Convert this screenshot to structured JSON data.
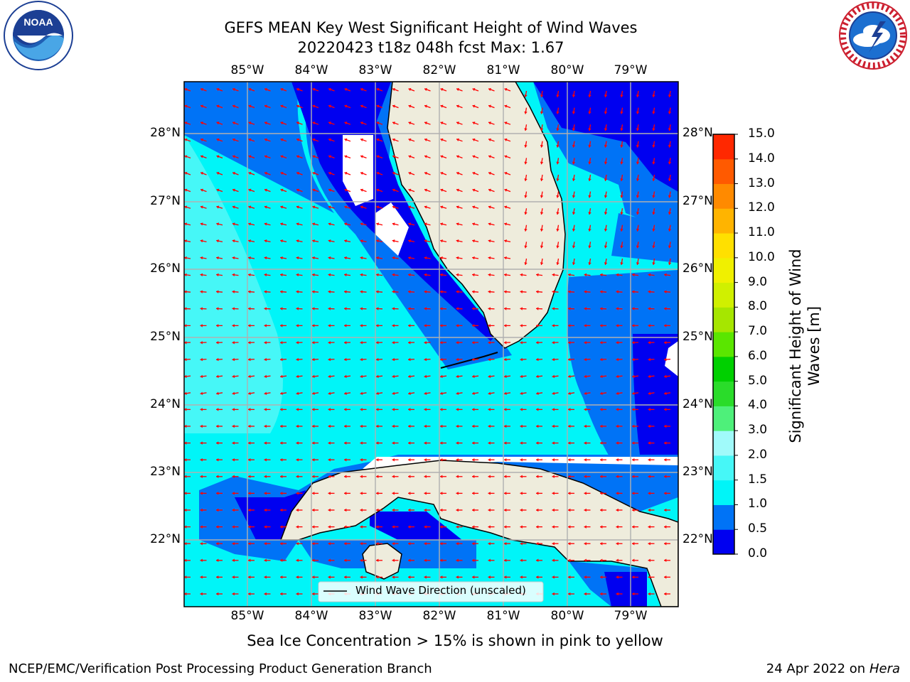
{
  "title": {
    "line1": "GEFS MEAN Key West Significant Height of Wind Waves",
    "line2": "20220423 t18z 048h fcst   Max: 1.67"
  },
  "logos": {
    "left": "noaa-logo",
    "right": "nws-logo"
  },
  "map": {
    "lon_ticks": [
      "85°W",
      "84°W",
      "83°W",
      "82°W",
      "81°W",
      "80°W",
      "79°W"
    ],
    "lat_ticks": [
      "28°N",
      "27°N",
      "26°N",
      "25°N",
      "24°N",
      "23°N",
      "22°N"
    ],
    "colors": {
      "land": "#eeecdc",
      "water": "#00f5f8",
      "band_0_0_5": "#0000f0",
      "band_0_5_1": "#0073f6",
      "band_1_1_5": "#00f5f8",
      "band_1_5_2": "#46f7f7",
      "missing": "#ffffff",
      "arrow": "#ff0000",
      "grid": "#b0b0b0"
    },
    "legend_label": "Wind Wave Direction (unscaled)"
  },
  "colorbar": {
    "label_line1": "Significant Height of Wind",
    "label_line2": "Waves [m]",
    "ticks": [
      "0.0",
      "0.5",
      "1.0",
      "1.5",
      "2.0",
      "3.0",
      "4.0",
      "5.0",
      "6.0",
      "7.0",
      "8.0",
      "9.0",
      "10.0",
      "11.0",
      "12.0",
      "13.0",
      "14.0",
      "15.0"
    ],
    "colors": [
      "#0000f0",
      "#0073f6",
      "#00f5f8",
      "#46f7f7",
      "#a0fafa",
      "#4ef07a",
      "#2adc2a",
      "#00d000",
      "#5ae600",
      "#a6e600",
      "#d0f000",
      "#f0f000",
      "#ffe000",
      "#ffb400",
      "#ff8a00",
      "#ff5a00",
      "#ff2800",
      "#ff0000"
    ]
  },
  "caption": "Sea Ice Concentration > 15% is shown in pink to yellow",
  "footer": {
    "left": "NCEP/EMC/Verification Post Processing Product Generation Branch",
    "right_prefix": "24 Apr 2022 on ",
    "right_host": "Hera"
  }
}
